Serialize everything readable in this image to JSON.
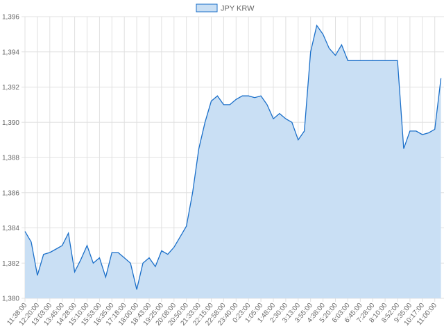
{
  "chart_data": {
    "type": "area",
    "categories": [
      "11:38:00",
      null,
      "12:20:00",
      null,
      "13:03:00",
      null,
      "13:45:00",
      null,
      "14:28:00",
      null,
      "15:10:00",
      null,
      "15:53:00",
      null,
      "16:35:00",
      null,
      "17:18:00",
      null,
      "18:00:00",
      null,
      "18:43:00",
      null,
      "19:25:00",
      null,
      "20:08:00",
      null,
      "20:50:00",
      null,
      "21:33:00",
      null,
      "22:15:00",
      null,
      "22:58:00",
      null,
      "23:40:00",
      null,
      "0:23:00",
      null,
      "1:05:00",
      null,
      "1:48:00",
      null,
      "2:30:00",
      null,
      "3:13:00",
      null,
      "3:55:00",
      null,
      "4:38:00",
      null,
      "5:20:00",
      null,
      "6:03:00",
      null,
      "6:45:00",
      null,
      "7:28:00",
      null,
      "8:10:00",
      null,
      "8:52:00",
      null,
      "9:35:00",
      null,
      "10:17:00",
      null,
      "11:00:00",
      null
    ],
    "series": [
      {
        "name": "JPY KRW",
        "color": "#1a6fc9",
        "fill": "#c9dff4",
        "values": [
          1383.8,
          1383.2,
          1381.3,
          1382.5,
          1382.6,
          1382.8,
          1383.0,
          1383.7,
          1381.5,
          1382.2,
          1383.0,
          1382.0,
          1382.3,
          1381.2,
          1382.6,
          1382.6,
          1382.3,
          1382.0,
          1380.5,
          1382.0,
          1382.3,
          1381.8,
          1382.7,
          1382.5,
          1382.9,
          1383.5,
          1384.1,
          1386.0,
          1388.5,
          1390.0,
          1391.2,
          1391.5,
          1391.0,
          1391.0,
          1391.3,
          1391.5,
          1391.5,
          1391.4,
          1391.5,
          1391.0,
          1390.2,
          1390.5,
          1390.2,
          1390.0,
          1389.0,
          1389.5,
          1394.0,
          1395.5,
          1395.0,
          1394.2,
          1393.8,
          1394.4,
          1393.5,
          1393.5,
          1393.5,
          1393.5,
          1393.5,
          1393.5,
          1393.5,
          1393.5,
          1393.5,
          1388.5,
          1389.5,
          1389.5,
          1389.3,
          1389.4,
          1389.6,
          1392.5
        ]
      }
    ],
    "ylim": [
      1380,
      1396
    ],
    "yticks": [
      {
        "value": 1380,
        "label": "1,380"
      },
      {
        "value": 1382,
        "label": "1,382"
      },
      {
        "value": 1384,
        "label": "1,384"
      },
      {
        "value": 1386,
        "label": "1,386"
      },
      {
        "value": 1388,
        "label": "1,388"
      },
      {
        "value": 1390,
        "label": "1,390"
      },
      {
        "value": 1392,
        "label": "1,392"
      },
      {
        "value": 1394,
        "label": "1,394"
      },
      {
        "value": 1396,
        "label": "1,396"
      }
    ],
    "grid": true,
    "legend": "top"
  }
}
